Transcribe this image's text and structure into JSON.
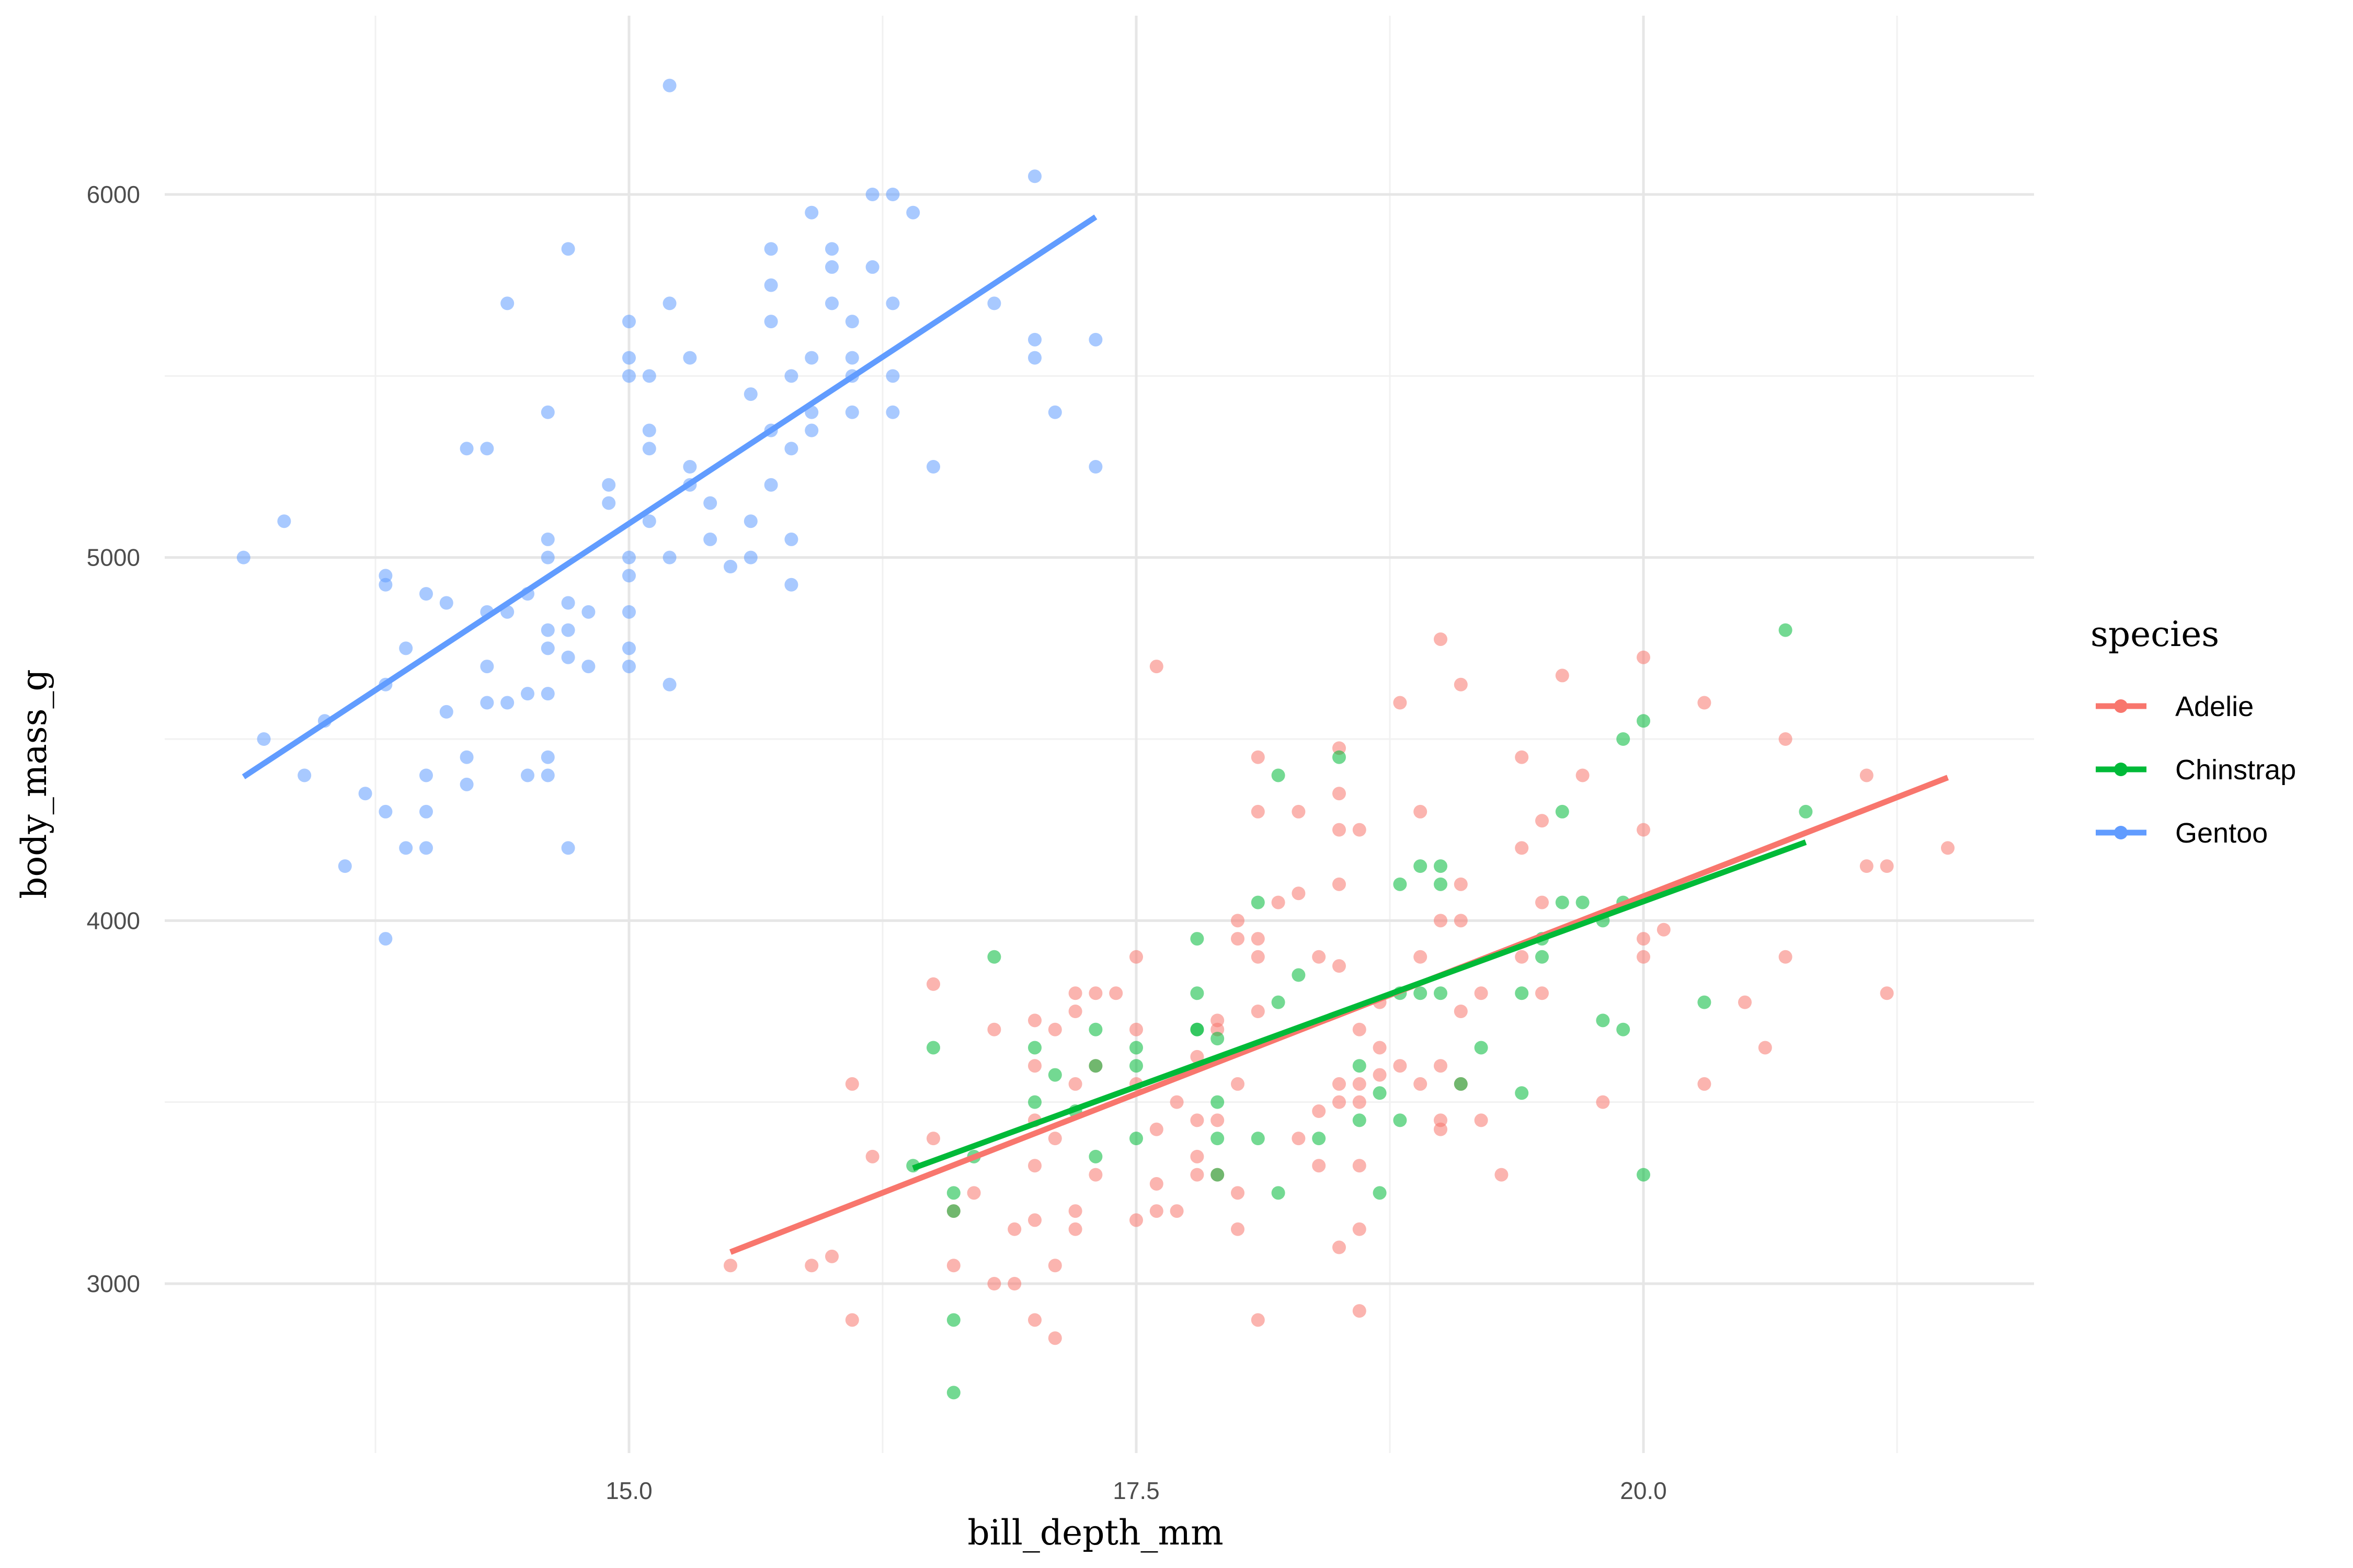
{
  "chart_data": {
    "type": "scatter",
    "xlabel": "bill_depth_mm",
    "ylabel": "body_mass_g",
    "xlim": [
      13.0,
      21.8
    ],
    "ylim": [
      2550,
      6400
    ],
    "x_ticks": [
      15.0,
      17.5,
      20.0
    ],
    "x_tick_labels": [
      "15.0",
      "17.5",
      "20.0"
    ],
    "y_ticks": [
      3000,
      4000,
      5000,
      6000
    ],
    "y_tick_labels": [
      "3000",
      "4000",
      "5000",
      "6000"
    ],
    "grid": true,
    "legend": {
      "title": "species",
      "placement": "right"
    },
    "series": [
      {
        "name": "Adelie",
        "color": "#F8766D",
        "trend": {
          "x": [
            15.5,
            21.5
          ],
          "y": [
            3087,
            4394
          ]
        },
        "points": [
          [
            15.5,
            3050
          ],
          [
            15.9,
            3050
          ],
          [
            16.0,
            3075
          ],
          [
            16.1,
            2900
          ],
          [
            16.1,
            3550
          ],
          [
            16.2,
            3350
          ],
          [
            16.5,
            3400
          ],
          [
            16.5,
            3825
          ],
          [
            16.6,
            3050
          ],
          [
            16.6,
            3200
          ],
          [
            16.7,
            3250
          ],
          [
            16.8,
            3000
          ],
          [
            16.8,
            3700
          ],
          [
            16.9,
            3000
          ],
          [
            16.9,
            3150
          ],
          [
            17.0,
            2900
          ],
          [
            17.0,
            3175
          ],
          [
            17.0,
            3325
          ],
          [
            17.0,
            3450
          ],
          [
            17.0,
            3600
          ],
          [
            17.0,
            3725
          ],
          [
            17.1,
            2850
          ],
          [
            17.1,
            3050
          ],
          [
            17.1,
            3400
          ],
          [
            17.1,
            3700
          ],
          [
            17.2,
            3200
          ],
          [
            17.2,
            3150
          ],
          [
            17.2,
            3550
          ],
          [
            17.2,
            3750
          ],
          [
            17.2,
            3800
          ],
          [
            17.3,
            3300
          ],
          [
            17.3,
            3600
          ],
          [
            17.3,
            3800
          ],
          [
            17.4,
            3800
          ],
          [
            17.5,
            3175
          ],
          [
            17.5,
            3700
          ],
          [
            17.5,
            3900
          ],
          [
            17.5,
            3550
          ],
          [
            17.6,
            3200
          ],
          [
            17.6,
            3275
          ],
          [
            17.6,
            3425
          ],
          [
            17.6,
            4700
          ],
          [
            17.7,
            3200
          ],
          [
            17.7,
            3500
          ],
          [
            17.8,
            3300
          ],
          [
            17.8,
            3450
          ],
          [
            17.8,
            3350
          ],
          [
            17.8,
            3625
          ],
          [
            17.9,
            3300
          ],
          [
            17.9,
            3450
          ],
          [
            17.9,
            3700
          ],
          [
            17.9,
            3725
          ],
          [
            18.0,
            3150
          ],
          [
            18.0,
            3250
          ],
          [
            18.0,
            3550
          ],
          [
            18.0,
            3950
          ],
          [
            18.0,
            4000
          ],
          [
            18.1,
            2900
          ],
          [
            18.1,
            3750
          ],
          [
            18.1,
            3900
          ],
          [
            18.1,
            3950
          ],
          [
            18.1,
            4300
          ],
          [
            18.1,
            4450
          ],
          [
            18.2,
            4050
          ],
          [
            18.3,
            3400
          ],
          [
            18.3,
            4075
          ],
          [
            18.3,
            4300
          ],
          [
            18.4,
            3325
          ],
          [
            18.4,
            3475
          ],
          [
            18.4,
            3900
          ],
          [
            18.5,
            3100
          ],
          [
            18.5,
            3500
          ],
          [
            18.5,
            3550
          ],
          [
            18.5,
            3875
          ],
          [
            18.5,
            4100
          ],
          [
            18.5,
            4250
          ],
          [
            18.5,
            4350
          ],
          [
            18.5,
            4475
          ],
          [
            18.6,
            2925
          ],
          [
            18.6,
            3150
          ],
          [
            18.6,
            3325
          ],
          [
            18.6,
            3550
          ],
          [
            18.6,
            3700
          ],
          [
            18.6,
            3500
          ],
          [
            18.6,
            4250
          ],
          [
            18.7,
            3575
          ],
          [
            18.7,
            3650
          ],
          [
            18.7,
            3775
          ],
          [
            18.8,
            3600
          ],
          [
            18.8,
            4600
          ],
          [
            18.9,
            3900
          ],
          [
            18.9,
            4300
          ],
          [
            18.9,
            3550
          ],
          [
            19.0,
            3425
          ],
          [
            19.0,
            3450
          ],
          [
            19.0,
            3600
          ],
          [
            19.0,
            4000
          ],
          [
            19.0,
            4775
          ],
          [
            19.1,
            3550
          ],
          [
            19.1,
            3750
          ],
          [
            19.1,
            4000
          ],
          [
            19.1,
            4100
          ],
          [
            19.1,
            4650
          ],
          [
            19.2,
            3450
          ],
          [
            19.2,
            3800
          ],
          [
            19.3,
            3300
          ],
          [
            19.4,
            3900
          ],
          [
            19.4,
            4200
          ],
          [
            19.4,
            4450
          ],
          [
            19.5,
            3800
          ],
          [
            19.5,
            4050
          ],
          [
            19.5,
            4275
          ],
          [
            19.6,
            4675
          ],
          [
            19.7,
            4400
          ],
          [
            19.8,
            3500
          ],
          [
            20.0,
            3900
          ],
          [
            20.0,
            3950
          ],
          [
            20.0,
            4250
          ],
          [
            20.0,
            4725
          ],
          [
            20.1,
            3975
          ],
          [
            20.3,
            3550
          ],
          [
            20.3,
            4600
          ],
          [
            20.5,
            3775
          ],
          [
            20.6,
            3650
          ],
          [
            20.7,
            3900
          ],
          [
            20.7,
            4500
          ],
          [
            21.1,
            4400
          ],
          [
            21.1,
            4150
          ],
          [
            21.2,
            3800
          ],
          [
            21.2,
            4150
          ],
          [
            21.5,
            4200
          ]
        ]
      },
      {
        "name": "Chinstrap",
        "color": "#00BA38",
        "trend": {
          "x": [
            16.4,
            20.8
          ],
          "y": [
            3318,
            4216
          ]
        },
        "points": [
          [
            16.4,
            3325
          ],
          [
            16.5,
            3650
          ],
          [
            16.6,
            2700
          ],
          [
            16.6,
            2900
          ],
          [
            16.6,
            3250
          ],
          [
            16.6,
            3200
          ],
          [
            16.7,
            3350
          ],
          [
            16.8,
            3900
          ],
          [
            17.0,
            3500
          ],
          [
            17.0,
            3650
          ],
          [
            17.1,
            3575
          ],
          [
            17.2,
            3475
          ],
          [
            17.3,
            3600
          ],
          [
            17.3,
            3700
          ],
          [
            17.3,
            3350
          ],
          [
            17.5,
            3650
          ],
          [
            17.5,
            3400
          ],
          [
            17.5,
            3600
          ],
          [
            17.8,
            3700
          ],
          [
            17.8,
            3800
          ],
          [
            17.8,
            3950
          ],
          [
            17.8,
            3700
          ],
          [
            17.9,
            3300
          ],
          [
            17.9,
            3400
          ],
          [
            17.9,
            3500
          ],
          [
            17.9,
            3675
          ],
          [
            18.1,
            3400
          ],
          [
            18.1,
            4050
          ],
          [
            18.2,
            3775
          ],
          [
            18.2,
            3250
          ],
          [
            18.2,
            4400
          ],
          [
            18.3,
            3850
          ],
          [
            18.4,
            3400
          ],
          [
            18.5,
            4450
          ],
          [
            18.6,
            3450
          ],
          [
            18.6,
            3600
          ],
          [
            18.7,
            3250
          ],
          [
            18.7,
            3525
          ],
          [
            18.8,
            3450
          ],
          [
            18.8,
            3800
          ],
          [
            18.8,
            4100
          ],
          [
            18.9,
            3800
          ],
          [
            18.9,
            4150
          ],
          [
            19.0,
            3800
          ],
          [
            19.0,
            4100
          ],
          [
            19.0,
            4150
          ],
          [
            19.1,
            3550
          ],
          [
            19.2,
            3650
          ],
          [
            19.4,
            3525
          ],
          [
            19.4,
            3800
          ],
          [
            19.5,
            3900
          ],
          [
            19.5,
            3950
          ],
          [
            19.6,
            4050
          ],
          [
            19.6,
            4300
          ],
          [
            19.7,
            4050
          ],
          [
            19.8,
            3725
          ],
          [
            19.8,
            4000
          ],
          [
            19.9,
            3700
          ],
          [
            19.9,
            4050
          ],
          [
            19.9,
            4500
          ],
          [
            20.0,
            3300
          ],
          [
            20.0,
            4550
          ],
          [
            20.3,
            3775
          ],
          [
            20.7,
            4800
          ],
          [
            20.8,
            4300
          ]
        ]
      },
      {
        "name": "Gentoo",
        "color": "#619CFF",
        "trend": {
          "x": [
            13.1,
            17.3
          ],
          "y": [
            4396,
            5938
          ]
        },
        "points": [
          [
            13.1,
            5000
          ],
          [
            13.2,
            4500
          ],
          [
            13.3,
            5100
          ],
          [
            13.4,
            4400
          ],
          [
            13.5,
            4550
          ],
          [
            13.6,
            4150
          ],
          [
            13.7,
            4350
          ],
          [
            13.8,
            3950
          ],
          [
            13.8,
            4300
          ],
          [
            13.8,
            4650
          ],
          [
            13.8,
            4925
          ],
          [
            13.8,
            4950
          ],
          [
            13.9,
            4750
          ],
          [
            13.9,
            4200
          ],
          [
            14.0,
            4200
          ],
          [
            14.0,
            4300
          ],
          [
            14.0,
            4400
          ],
          [
            14.0,
            4900
          ],
          [
            14.1,
            4575
          ],
          [
            14.1,
            4875
          ],
          [
            14.2,
            4375
          ],
          [
            14.2,
            4450
          ],
          [
            14.2,
            5300
          ],
          [
            14.3,
            5300
          ],
          [
            14.3,
            4600
          ],
          [
            14.3,
            4700
          ],
          [
            14.3,
            4850
          ],
          [
            14.4,
            4600
          ],
          [
            14.4,
            4850
          ],
          [
            14.4,
            5700
          ],
          [
            14.5,
            4400
          ],
          [
            14.5,
            4625
          ],
          [
            14.5,
            4900
          ],
          [
            14.6,
            4400
          ],
          [
            14.6,
            4450
          ],
          [
            14.6,
            4625
          ],
          [
            14.6,
            4750
          ],
          [
            14.6,
            4800
          ],
          [
            14.6,
            5000
          ],
          [
            14.6,
            5050
          ],
          [
            14.6,
            5400
          ],
          [
            14.7,
            4200
          ],
          [
            14.7,
            4725
          ],
          [
            14.7,
            4800
          ],
          [
            14.7,
            4875
          ],
          [
            14.7,
            5850
          ],
          [
            14.8,
            4700
          ],
          [
            14.8,
            4850
          ],
          [
            14.9,
            5200
          ],
          [
            14.9,
            5150
          ],
          [
            15.1,
            5300
          ],
          [
            15.0,
            4700
          ],
          [
            15.0,
            4750
          ],
          [
            15.0,
            4850
          ],
          [
            15.0,
            4950
          ],
          [
            15.0,
            5000
          ],
          [
            15.0,
            5500
          ],
          [
            15.0,
            5550
          ],
          [
            15.0,
            5650
          ],
          [
            15.1,
            5100
          ],
          [
            15.1,
            5350
          ],
          [
            15.1,
            5500
          ],
          [
            15.2,
            4650
          ],
          [
            15.2,
            5000
          ],
          [
            15.2,
            5700
          ],
          [
            15.2,
            6300
          ],
          [
            15.3,
            5200
          ],
          [
            15.3,
            5250
          ],
          [
            15.3,
            5550
          ],
          [
            15.4,
            5050
          ],
          [
            15.4,
            5150
          ],
          [
            15.5,
            4975
          ],
          [
            15.6,
            5000
          ],
          [
            15.6,
            5100
          ],
          [
            15.6,
            5450
          ],
          [
            15.7,
            5200
          ],
          [
            15.7,
            5350
          ],
          [
            15.7,
            5650
          ],
          [
            15.7,
            5750
          ],
          [
            15.7,
            5850
          ],
          [
            15.8,
            4925
          ],
          [
            15.8,
            5050
          ],
          [
            15.8,
            5300
          ],
          [
            15.8,
            5500
          ],
          [
            15.9,
            5350
          ],
          [
            15.9,
            5400
          ],
          [
            15.9,
            5550
          ],
          [
            15.9,
            5950
          ],
          [
            16.0,
            5700
          ],
          [
            16.0,
            5800
          ],
          [
            16.0,
            5850
          ],
          [
            16.1,
            5400
          ],
          [
            16.1,
            5500
          ],
          [
            16.1,
            5550
          ],
          [
            16.1,
            5650
          ],
          [
            16.2,
            5800
          ],
          [
            16.2,
            6000
          ],
          [
            16.3,
            5400
          ],
          [
            16.3,
            5500
          ],
          [
            16.3,
            5700
          ],
          [
            16.3,
            6000
          ],
          [
            16.4,
            5950
          ],
          [
            16.5,
            5250
          ],
          [
            16.8,
            5700
          ],
          [
            17.0,
            5550
          ],
          [
            17.0,
            5600
          ],
          [
            17.0,
            6050
          ],
          [
            17.1,
            5400
          ],
          [
            17.3,
            5250
          ],
          [
            17.3,
            5600
          ]
        ]
      }
    ]
  }
}
